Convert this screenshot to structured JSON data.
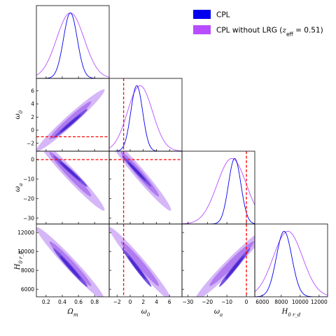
{
  "chart_data": {
    "type": "corner",
    "parameters": [
      {
        "key": "om",
        "label": "Ω_m",
        "ticks": [
          0.2,
          0.4,
          0.6,
          0.8
        ],
        "tick_labels": [
          "0.2",
          "0.4",
          "0.6",
          "0.8"
        ],
        "range": [
          0.08,
          0.98
        ]
      },
      {
        "key": "w0",
        "label": "ω_0",
        "ticks": [
          -2,
          0,
          2,
          4,
          6
        ],
        "tick_labels": [
          "−2",
          "0",
          "2",
          "4",
          "6"
        ],
        "range": [
          -3.2,
          7.9
        ]
      },
      {
        "key": "wa",
        "label": "ω_a",
        "ticks": [
          -30,
          -20,
          -10,
          0
        ],
        "tick_labels": [
          "−30",
          "−20",
          "−10",
          "0"
        ],
        "range": [
          -33,
          4.3
        ]
      },
      {
        "key": "h0rd",
        "label": "H_0 r_d",
        "ticks": [
          6000,
          8000,
          10000,
          12000
        ],
        "tick_labels": [
          "6000",
          "8000",
          "10000",
          "12000"
        ],
        "range": [
          5200,
          12900
        ]
      }
    ],
    "series": [
      {
        "name": "CPL",
        "color": "#0000ee",
        "fill_inner": "#4b28d2",
        "fill_outer": "#7450e0",
        "means": {
          "om": 0.5,
          "w0": 1.0,
          "wa": -6.0,
          "h0rd": 8300
        },
        "sigmas": {
          "om": 0.085,
          "w0": 0.9,
          "wa": 3.2,
          "h0rd": 820
        },
        "correlations": {
          "om_w0": 0.985,
          "om_wa": -0.985,
          "om_h0rd": -0.985,
          "w0_wa": -0.985,
          "w0_h0rd": -0.985,
          "wa_h0rd": 0.985
        }
      },
      {
        "name": "CPL without LRG ($z_{eff}=0.51$)",
        "color": "#b84dff",
        "fill_inner": "#b07cf0",
        "fill_outer": "#d5b7f8",
        "means": {
          "om": 0.5,
          "w0": 1.5,
          "wa": -7.5,
          "h0rd": 8700
        },
        "sigmas": {
          "om": 0.17,
          "w0": 1.9,
          "wa": 7.5,
          "h0rd": 1550
        },
        "correlations": {
          "om_w0": 0.975,
          "om_wa": -0.975,
          "om_h0rd": -0.975,
          "w0_wa": -0.975,
          "w0_h0rd": -0.975,
          "wa_h0rd": 0.975
        }
      }
    ],
    "reference_lines": {
      "w0": -1,
      "wa": 0,
      "color": "#ff0000"
    },
    "legend": {
      "placement": "top-right"
    }
  }
}
